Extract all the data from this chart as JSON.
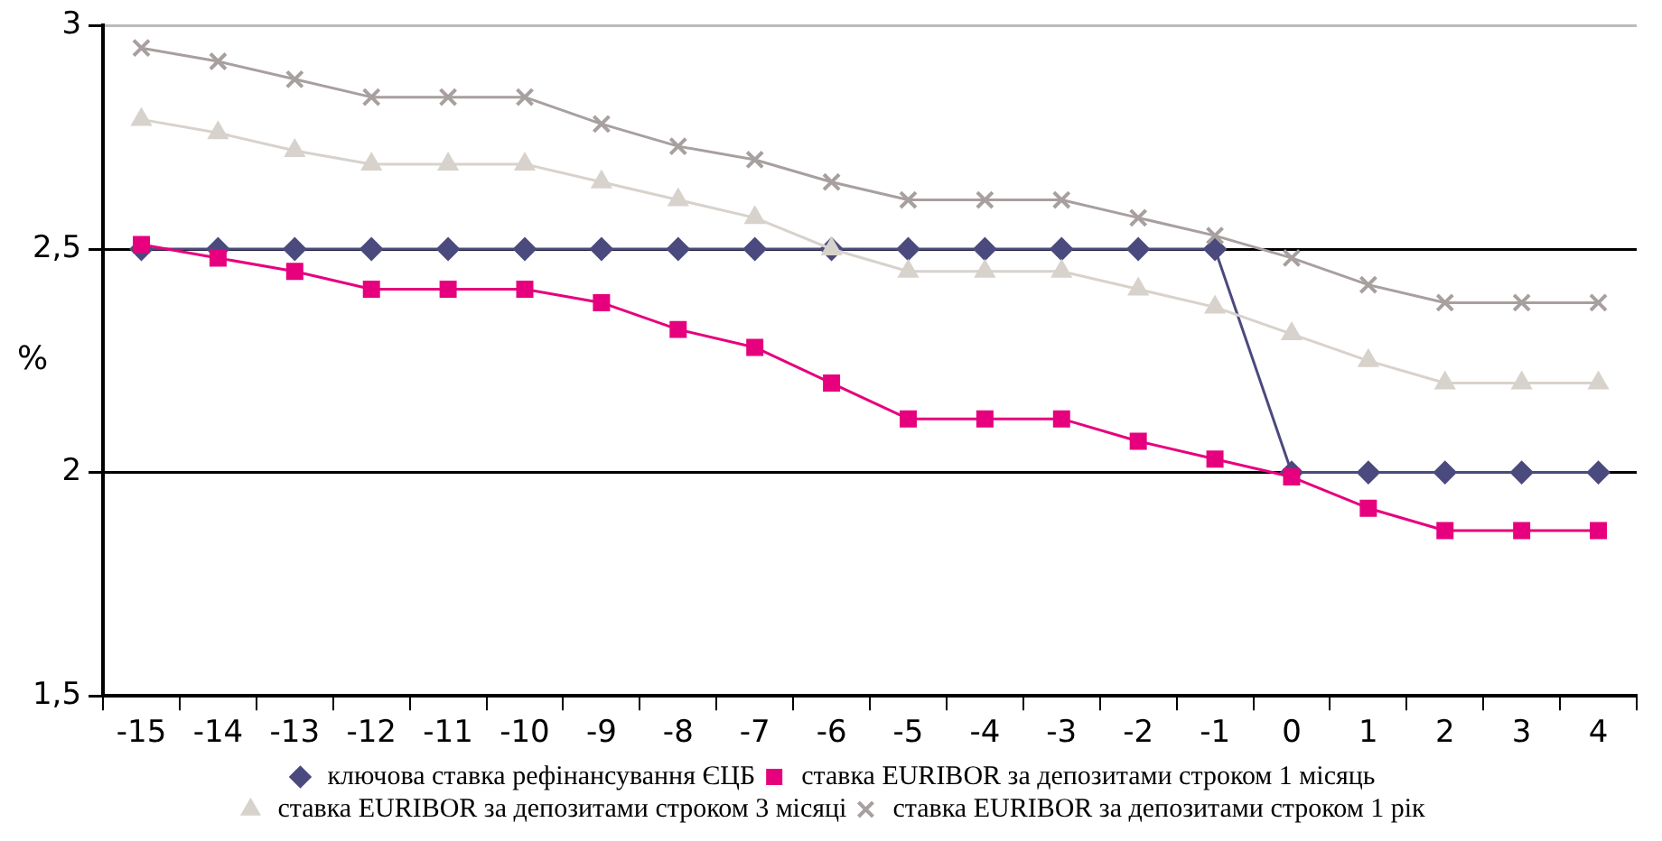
{
  "chart_data": {
    "type": "line",
    "ylabel": "%",
    "categories": [
      "-15",
      "-14",
      "-13",
      "-12",
      "-11",
      "-10",
      "-9",
      "-8",
      "-7",
      "-6",
      "-5",
      "-4",
      "-3",
      "-2",
      "-1",
      "0",
      "1",
      "2",
      "3",
      "4"
    ],
    "series": [
      {
        "name": "ключова ставка рефінансування ЄЦБ",
        "color": "#4b4a7e",
        "marker": "diamond",
        "values": [
          2.5,
          2.5,
          2.5,
          2.5,
          2.5,
          2.5,
          2.5,
          2.5,
          2.5,
          2.5,
          2.5,
          2.5,
          2.5,
          2.5,
          2.5,
          2.0,
          2.0,
          2.0,
          2.0,
          2.0
        ]
      },
      {
        "name": "ставка EURIBOR за депозитами строком 1 місяць",
        "color": "#e6007e",
        "marker": "square",
        "values": [
          2.51,
          2.48,
          2.45,
          2.41,
          2.41,
          2.41,
          2.38,
          2.32,
          2.28,
          2.2,
          2.12,
          2.12,
          2.12,
          2.07,
          2.03,
          1.99,
          1.92,
          1.87,
          1.87,
          1.87
        ]
      },
      {
        "name": "ставка EURIBOR за депозитами строком 3 місяці",
        "color": "#d8d2cc",
        "marker": "triangle",
        "values": [
          2.79,
          2.76,
          2.72,
          2.69,
          2.69,
          2.69,
          2.65,
          2.61,
          2.57,
          2.5,
          2.45,
          2.45,
          2.45,
          2.41,
          2.37,
          2.31,
          2.25,
          2.2,
          2.2,
          2.2
        ]
      },
      {
        "name": "ставка EURIBOR за депозитами строком 1 рік",
        "color": "#a89f9f",
        "marker": "cross",
        "values": [
          2.95,
          2.92,
          2.88,
          2.84,
          2.84,
          2.84,
          2.78,
          2.73,
          2.7,
          2.65,
          2.61,
          2.61,
          2.61,
          2.57,
          2.53,
          2.48,
          2.42,
          2.38,
          2.38,
          2.38
        ]
      }
    ],
    "ylim": [
      1.5,
      3
    ],
    "yticks": [
      {
        "value": 1.5,
        "label": "1,5"
      },
      {
        "value": 2,
        "label": "2"
      },
      {
        "value": 2.5,
        "label": "2,5"
      },
      {
        "value": 3,
        "label": "3"
      }
    ],
    "grid": "y",
    "legend": "bottom"
  }
}
